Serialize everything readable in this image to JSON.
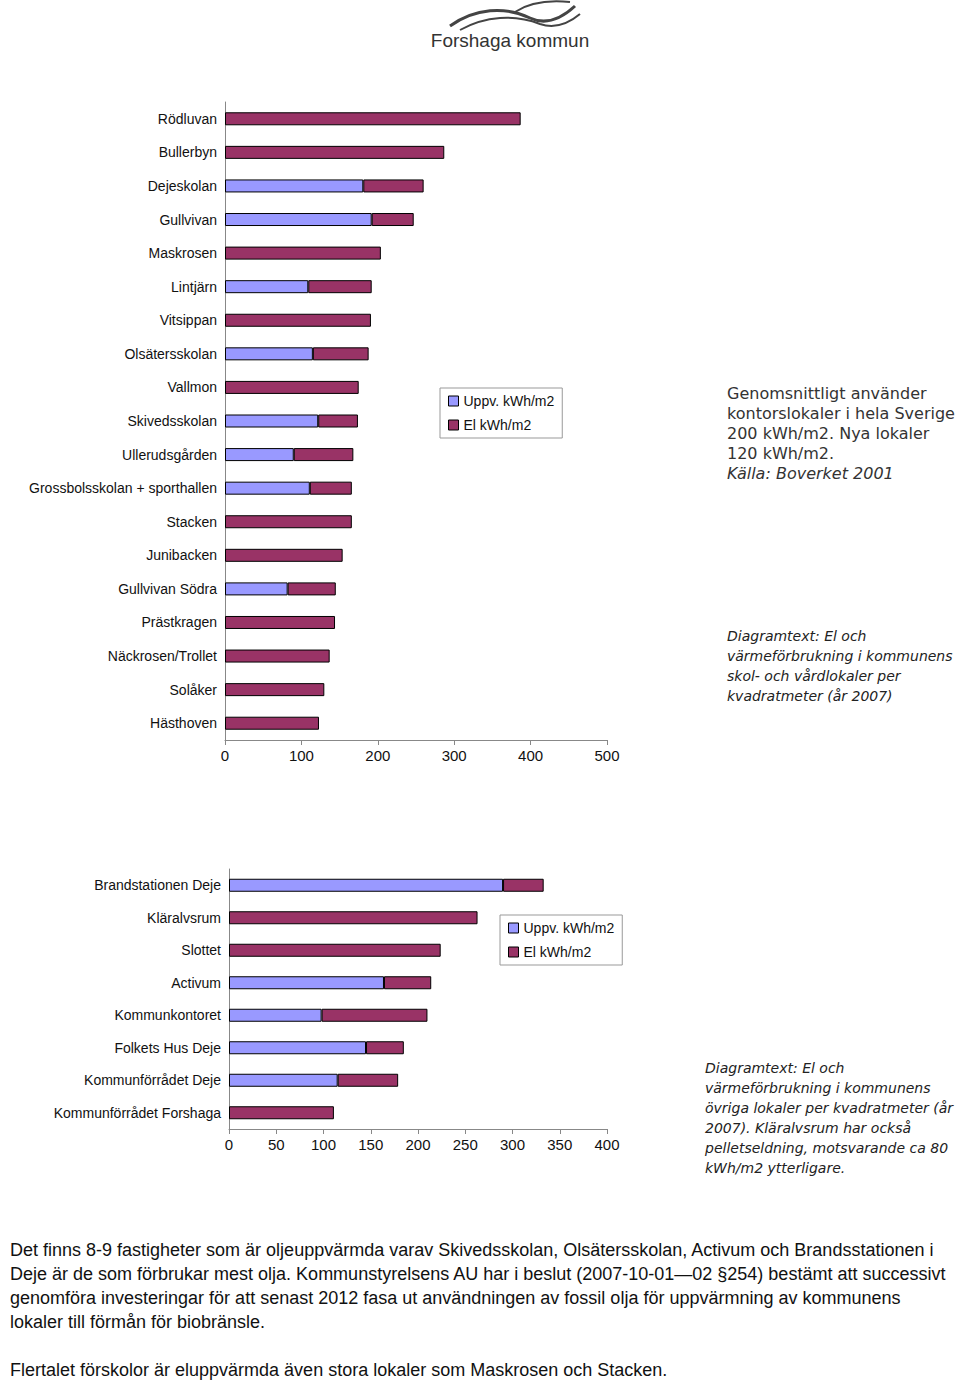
{
  "header": {
    "title": "Forshaga kommun"
  },
  "chart_data": [
    {
      "type": "bar",
      "orientation": "horizontal",
      "stacked": true,
      "grid": false,
      "legend": "right",
      "categories": [
        "Rödluvan",
        "Bullerbyn",
        "Dejeskolan",
        "Gullvivan",
        "Maskrosen",
        "Lintjärn",
        "Vitsippan",
        "Olsätersskolan",
        "Vallmon",
        "Skivedsskolan",
        "Ullerudsgården",
        "Grossbolsskolan + sporthallen",
        "Stacken",
        "Junibacken",
        "Gullvivan Södra",
        "Prästkragen",
        "Näckrosen/Trollet",
        "Solåker",
        "Hästhoven"
      ],
      "series": [
        {
          "name": "Uppv. kWh/m2",
          "color": "#9999ff",
          "values": [
            null,
            null,
            181,
            192,
            null,
            109,
            null,
            115,
            null,
            122,
            90,
            111,
            null,
            null,
            82,
            null,
            null,
            null,
            null
          ]
        },
        {
          "name": "El kWh/m2",
          "color": "#993366",
          "values": [
            387,
            287,
            79,
            55,
            204,
            83,
            191,
            73,
            175,
            52,
            78,
            55,
            166,
            154,
            63,
            144,
            137,
            130,
            123
          ]
        }
      ],
      "xlim": [
        0,
        500
      ],
      "xticks": [
        0,
        100,
        200,
        300,
        400,
        500
      ],
      "annotations": [
        "Genomsnittligt använder kontorslokaler i hela Sverige 200 kWh/m2. Nya lokaler 120 kWh/m2.",
        "Källa: Boverket 2001",
        "Diagramtext: El och värmeförbrukning i kommunens skol- och vårdlokaler per kvadratmeter (år 2007)"
      ]
    },
    {
      "type": "bar",
      "orientation": "horizontal",
      "stacked": true,
      "grid": false,
      "legend": "right",
      "categories": [
        "Brandstationen Deje",
        "Kläralvsrum",
        "Slottet",
        "Activum",
        "Kommunkontoret",
        "Folkets Hus Deje",
        "Kommunförrådet Deje",
        "Kommunförrådet Forshaga"
      ],
      "series": [
        {
          "name": "Uppv. kWh/m2",
          "color": "#9999ff",
          "values": [
            290,
            null,
            null,
            164,
            98,
            145,
            115,
            null
          ]
        },
        {
          "name": "El kWh/m2",
          "color": "#993366",
          "values": [
            43,
            263,
            224,
            50,
            112,
            40,
            64,
            111
          ]
        }
      ],
      "xlim": [
        0,
        400
      ],
      "xticks": [
        0,
        50,
        100,
        150,
        200,
        250,
        300,
        350,
        400
      ],
      "annotations": [
        "Diagramtext: El och värmeförbrukning i kommunens övriga lokaler per kvadratmeter (år 2007). Kläralvsrum har också pelletseldning, motsvarande ca 80 kWh/m2 ytterligare."
      ]
    }
  ],
  "paragraphs": [
    "Det finns 8-9 fastigheter som är oljeuppvärmda varav Skivedsskolan, Olsätersskolan, Activum och Brandsstationen i Deje är de som förbrukar mest olja. Kommunstyrelsens AU har i beslut (2007-10-01—02 §254) bestämt att successivt genomföra investeringar för att senast 2012 fasa ut användningen av fossil olja för uppvärmning av kommunens lokaler till förmån för biobränsle.",
    "Flertalet förskolor är eluppvärmda även stora lokaler som Maskrosen och Stacken."
  ]
}
